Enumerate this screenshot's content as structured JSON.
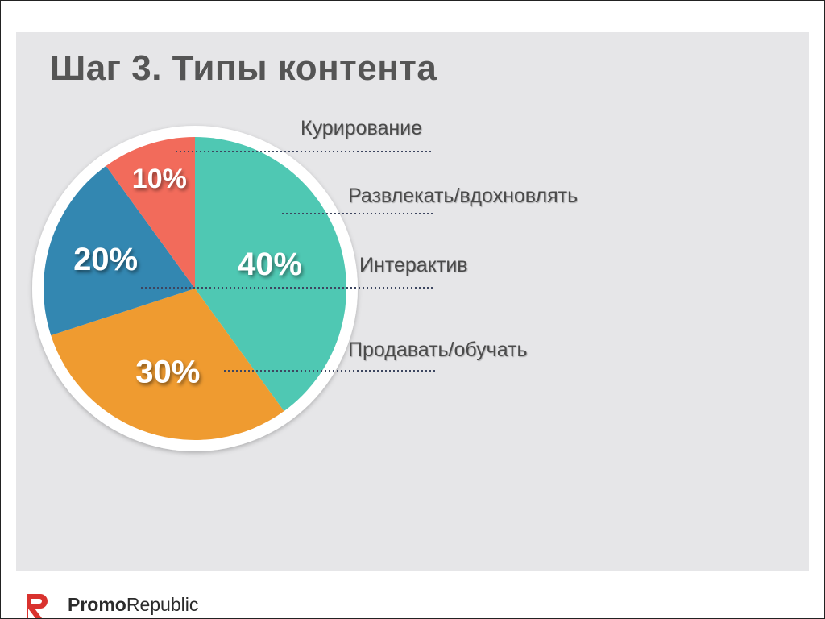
{
  "title": "Шаг 3. Типы контента",
  "brand": {
    "name_bold": "Promo",
    "name_regular": "Republic",
    "mark_color": "#d9322e",
    "mark_icon": "promorepublic-logo-icon"
  },
  "chart_data": {
    "type": "pie",
    "title": "",
    "categories": [
      "Курирование",
      "Развлекать/вдохновлять",
      "Интерактив",
      "Продавать/обучать"
    ],
    "slices": [
      {
        "label": "40%",
        "value": 40,
        "color": "#4fc8b3"
      },
      {
        "label": "30%",
        "value": 30,
        "color": "#ef9b30"
      },
      {
        "label": "20%",
        "value": 20,
        "color": "#3387b1"
      },
      {
        "label": "10%",
        "value": 10,
        "color": "#f26b5b"
      }
    ],
    "legend": "right",
    "leader_lines": "dotted"
  }
}
